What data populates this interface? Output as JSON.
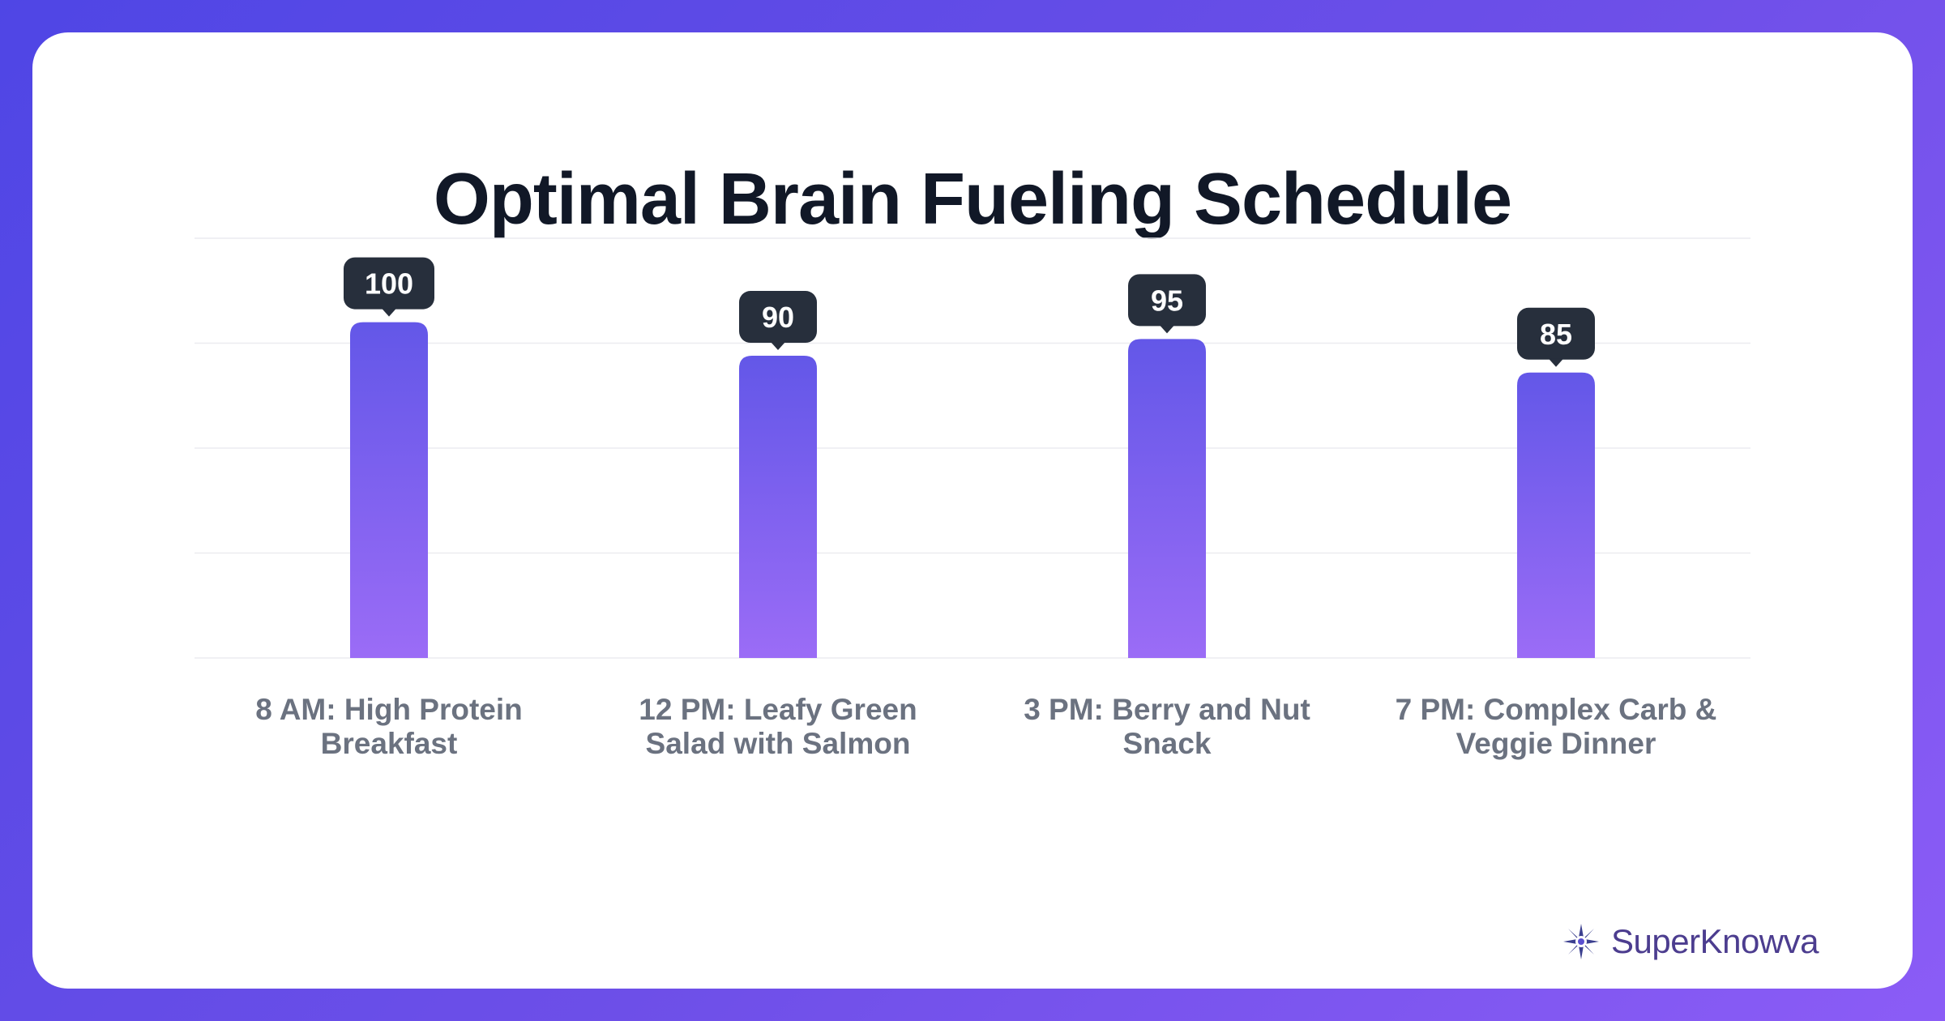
{
  "colors": {
    "bar_top": "#6357e8",
    "bar_bottom": "#9b6cf6",
    "badge": "#272f3c",
    "label": "#6b7280",
    "grid": "#ececf0",
    "brand": "#4c3d8f"
  },
  "brand": {
    "name": "SuperKnowva",
    "icon": "compass-star-icon"
  },
  "chart_data": {
    "type": "bar",
    "title": "Optimal Brain Fueling Schedule",
    "categories": [
      [
        "8 AM: High Protein",
        "Breakfast"
      ],
      [
        "12 PM: Leafy Green",
        "Salad with Salmon"
      ],
      [
        "3 PM: Berry and Nut",
        "Snack"
      ],
      [
        "7 PM: Complex Carb &",
        "Veggie Dinner"
      ]
    ],
    "values": [
      100,
      90,
      95,
      85
    ],
    "ylim": [
      0,
      125
    ],
    "grid": true,
    "legend": false,
    "data_labels": true
  }
}
